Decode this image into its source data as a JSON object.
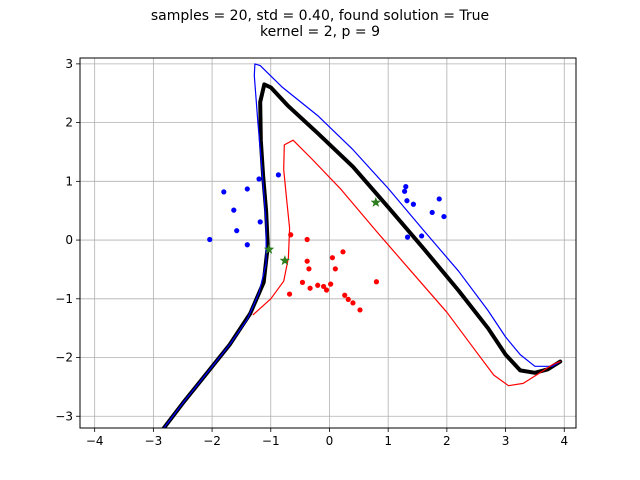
{
  "chart_data": {
    "type": "scatter",
    "title_line1": "samples = 20, std = 0.40, found solution = True",
    "title_line2": "kernel = 2, p = 9",
    "xlabel": "",
    "ylabel": "",
    "xlim": [
      -4.25,
      4.2
    ],
    "ylim": [
      -3.2,
      3.1
    ],
    "grid": true,
    "xticks": [
      -4,
      -3,
      -2,
      -1,
      0,
      1,
      2,
      3,
      4
    ],
    "yticks": [
      -3,
      -2,
      -1,
      0,
      1,
      2,
      3
    ],
    "colors": {
      "class_blue": "#0000ff",
      "class_red": "#ff0000",
      "boundary": "#000000",
      "marker_star": "#2e7d1e",
      "grid": "#b0b0b0"
    },
    "series": [
      {
        "color": "#0000ff",
        "x": [
          -2.04,
          -1.8,
          -1.63,
          -1.58,
          -1.4,
          -1.4,
          -1.2,
          -1.18,
          -0.87,
          1.28,
          1.3,
          1.32,
          1.33,
          1.43,
          1.57,
          1.75,
          1.87,
          1.95
        ],
        "y": [
          0.01,
          0.82,
          0.51,
          0.16,
          0.87,
          -0.08,
          1.04,
          0.31,
          1.11,
          0.83,
          0.91,
          0.67,
          0.05,
          0.61,
          0.07,
          0.47,
          0.7,
          0.4
        ]
      },
      {
        "color": "#ff0000",
        "x": [
          -0.66,
          -0.68,
          -0.38,
          -0.46,
          -0.38,
          -0.35,
          -0.33,
          -0.2,
          -0.1,
          -0.05,
          0.02,
          0.05,
          0.1,
          0.23,
          0.26,
          0.32,
          0.4,
          0.52,
          0.8
        ],
        "y": [
          0.09,
          -0.92,
          0.01,
          -0.72,
          -0.36,
          -0.49,
          -0.82,
          -0.77,
          -0.79,
          -0.85,
          -0.75,
          -0.3,
          -0.49,
          -0.2,
          -0.94,
          -1.01,
          -1.07,
          -1.19,
          -0.71
        ]
      },
      {
        "color": "#2e7d1e",
        "marker": "star",
        "x": [
          -1.03,
          -0.76,
          0.79
        ],
        "y": [
          -0.16,
          -0.35,
          0.64
        ]
      }
    ],
    "curves": [
      {
        "color": "#000000",
        "x": [
          -2.82,
          -2.5,
          -2.1,
          -1.7,
          -1.35,
          -1.12,
          -1.05,
          -1.08,
          -1.13,
          -1.17,
          -1.18,
          -1.11,
          -1.0,
          -0.7,
          -0.2,
          0.4,
          1.0,
          1.6,
          2.2,
          2.7,
          3.0,
          3.25,
          3.5,
          3.72,
          3.93
        ],
        "y": [
          -3.2,
          -2.78,
          -2.28,
          -1.78,
          -1.25,
          -0.72,
          -0.1,
          0.5,
          1.1,
          1.7,
          2.35,
          2.65,
          2.6,
          2.28,
          1.82,
          1.25,
          0.56,
          -0.14,
          -0.86,
          -1.5,
          -1.95,
          -2.22,
          -2.26,
          -2.2,
          -2.07
        ]
      },
      {
        "color": "#0000ff",
        "x": [
          -2.82,
          -2.5,
          -2.1,
          -1.7,
          -1.4,
          -1.2,
          -1.08,
          -1.08,
          -1.15,
          -1.22,
          -1.28,
          -1.27,
          -1.18,
          -0.8,
          -0.2,
          0.4,
          1.0,
          1.6,
          2.2,
          2.7,
          3.0,
          3.25,
          3.5,
          3.8,
          3.93
        ],
        "y": [
          -3.2,
          -2.78,
          -2.28,
          -1.78,
          -1.35,
          -0.9,
          -0.4,
          0.3,
          1.2,
          2.0,
          2.8,
          3.0,
          2.97,
          2.6,
          2.12,
          1.54,
          0.88,
          0.17,
          -0.53,
          -1.2,
          -1.65,
          -1.95,
          -2.15,
          -2.15,
          -2.07
        ]
      },
      {
        "color": "#ff0000",
        "x": [
          -1.3,
          -1.0,
          -0.78,
          -0.7,
          -0.68,
          -0.73,
          -0.78,
          -0.77,
          -0.62,
          -0.3,
          0.2,
          0.8,
          1.4,
          2.0,
          2.5,
          2.8,
          3.05,
          3.3,
          3.6,
          3.8,
          3.93
        ],
        "y": [
          -1.27,
          -1.0,
          -0.7,
          -0.3,
          0.2,
          0.7,
          1.2,
          1.62,
          1.7,
          1.38,
          0.86,
          0.15,
          -0.54,
          -1.23,
          -1.9,
          -2.3,
          -2.48,
          -2.44,
          -2.25,
          -2.12,
          -2.07
        ]
      }
    ]
  }
}
